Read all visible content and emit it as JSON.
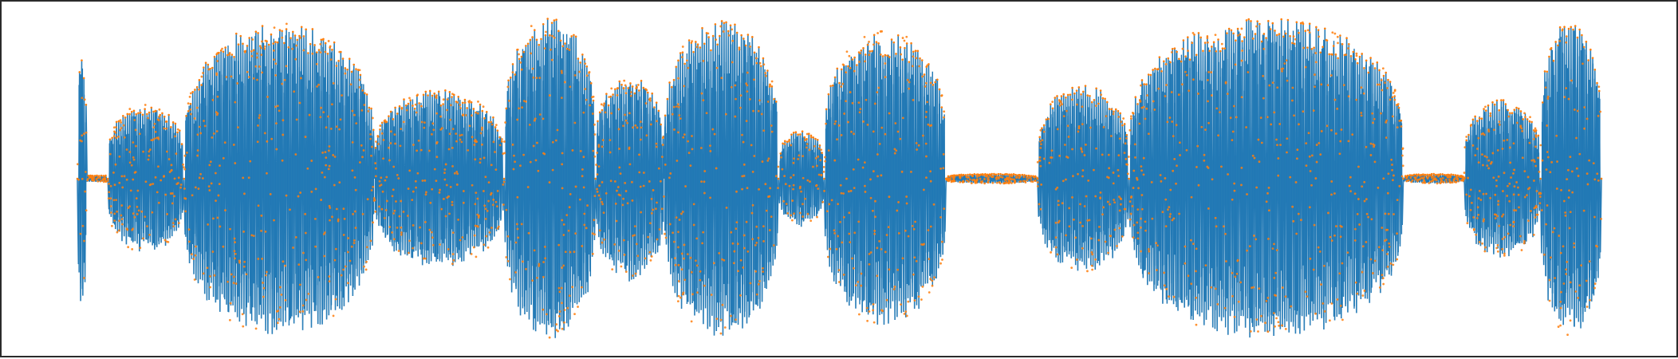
{
  "chart_data": {
    "type": "line",
    "title": "",
    "xlabel": "",
    "ylabel": "",
    "grid": false,
    "legend": "none",
    "axes_visible": false,
    "x_range": [
      0,
      1
    ],
    "y_range": [
      -1,
      1
    ],
    "colors": {
      "series_line": "#1f77b4",
      "series_markers": "#ff7f0e",
      "frame": "#2b2b2b",
      "background": "#ffffff"
    },
    "series": [
      {
        "kind": "waveform-line",
        "color": "#1f77b4",
        "envelope": [
          {
            "x0": 0.0,
            "x1": 0.006,
            "amp": 0.78
          },
          {
            "x0": 0.02,
            "x1": 0.07,
            "amp": 0.46
          },
          {
            "x0": 0.07,
            "x1": 0.195,
            "amp": 0.97
          },
          {
            "x0": 0.195,
            "x1": 0.28,
            "amp": 0.55
          },
          {
            "x0": 0.28,
            "x1": 0.34,
            "amp": 1.0
          },
          {
            "x0": 0.34,
            "x1": 0.385,
            "amp": 0.64
          },
          {
            "x0": 0.385,
            "x1": 0.46,
            "amp": 0.98
          },
          {
            "x0": 0.46,
            "x1": 0.49,
            "amp": 0.3
          },
          {
            "x0": 0.49,
            "x1": 0.57,
            "amp": 0.92
          },
          {
            "x0": 0.57,
            "x1": 0.63,
            "amp": 0.03
          },
          {
            "x0": 0.63,
            "x1": 0.69,
            "amp": 0.58
          },
          {
            "x0": 0.69,
            "x1": 0.87,
            "amp": 1.0
          },
          {
            "x0": 0.87,
            "x1": 0.91,
            "amp": 0.03
          },
          {
            "x0": 0.91,
            "x1": 0.96,
            "amp": 0.49
          },
          {
            "x0": 0.96,
            "x1": 1.0,
            "amp": 0.98
          }
        ]
      },
      {
        "kind": "sample-markers",
        "color": "#ff7f0e"
      }
    ]
  }
}
